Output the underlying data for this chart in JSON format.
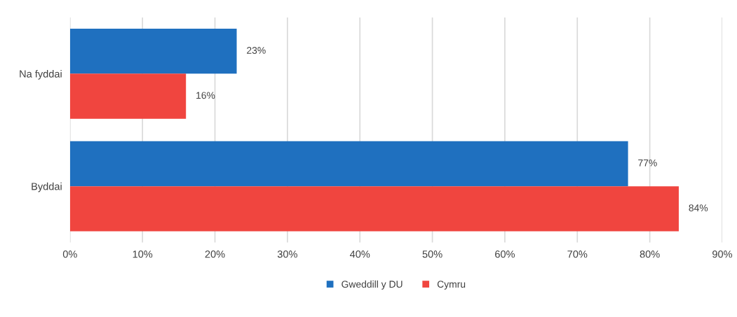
{
  "chart_data": {
    "type": "bar",
    "orientation": "horizontal",
    "categories": [
      "Na fyddai",
      "Byddai"
    ],
    "series": [
      {
        "name": "Gweddill y DU",
        "color": "#1f70bf",
        "values": [
          23,
          77
        ],
        "value_labels": [
          "23%",
          "77%"
        ]
      },
      {
        "name": "Cymru",
        "color": "#f0453f",
        "values": [
          16,
          84
        ],
        "value_labels": [
          "16%",
          "84%"
        ]
      }
    ],
    "xlim": [
      0,
      90
    ],
    "xticks": [
      {
        "value": 0,
        "label": "0%"
      },
      {
        "value": 10,
        "label": "10%"
      },
      {
        "value": 20,
        "label": "20%"
      },
      {
        "value": 30,
        "label": "30%"
      },
      {
        "value": 40,
        "label": "40%"
      },
      {
        "value": 50,
        "label": "50%"
      },
      {
        "value": 60,
        "label": "60%"
      },
      {
        "value": 70,
        "label": "70%"
      },
      {
        "value": 80,
        "label": "80%"
      },
      {
        "value": 90,
        "label": "90%"
      }
    ],
    "grid": "x",
    "legend": "bottom"
  }
}
